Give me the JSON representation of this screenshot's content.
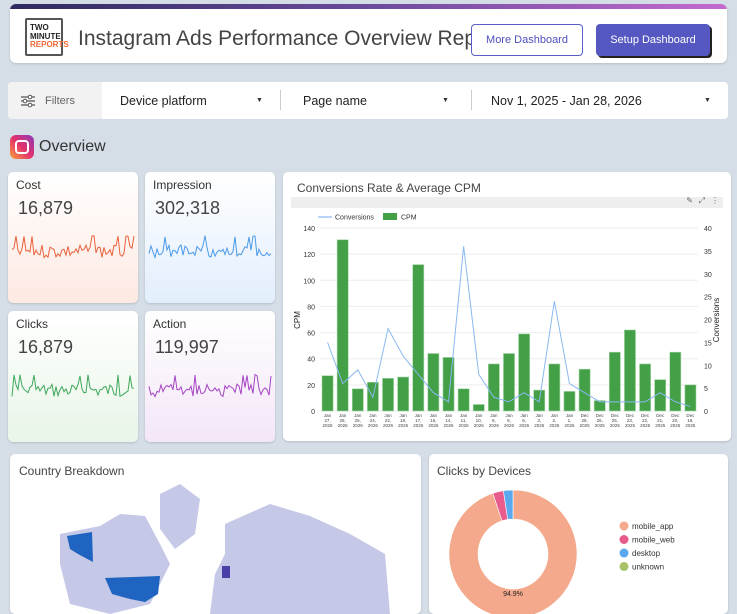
{
  "header": {
    "logo_text": [
      "TWO",
      "MINUTE",
      "REPORTS"
    ],
    "title": "Instagram Ads Performance Overview Report",
    "more_label": "More Dashboard",
    "setup_label": "Setup Dashboard"
  },
  "filters": {
    "label": "Filters",
    "device_platform": "Device platform",
    "page_name": "Page name",
    "date_range": "Nov 1, 2025 - Jan 28, 2026"
  },
  "overview": {
    "title": "Overview"
  },
  "kpis": [
    {
      "label": "Cost",
      "value": "16,879",
      "color": "#e8613a"
    },
    {
      "label": "Impression",
      "value": "302,318",
      "color": "#4a9ae8"
    },
    {
      "label": "Clicks",
      "value": "16,879",
      "color": "#3fa85a"
    },
    {
      "label": "Action",
      "value": "119,997",
      "color": "#a544c4"
    }
  ],
  "chart_data": [
    {
      "type": "bar+line",
      "title": "Conversions Rate & Average CPM",
      "legend": [
        "Conversions",
        "CPM"
      ],
      "legend_position": "top-left",
      "ylabel": "CPM",
      "y2label": "Conversions",
      "ylim": [
        0,
        140
      ],
      "y2lim": [
        0,
        40
      ],
      "yticks": [
        0,
        20,
        40,
        60,
        80,
        100,
        120,
        140
      ],
      "y2ticks": [
        0,
        5,
        10,
        15,
        20,
        25,
        30,
        35,
        40
      ],
      "categories": [
        "Jan 27, 2026",
        "Jan 26, 2026",
        "Jan 25, 2026",
        "Jan 24, 2026",
        "Jan 22, 2026",
        "Jan 18, 2026",
        "Jan 17, 2026",
        "Jan 16, 2026",
        "Jan 14, 2026",
        "Jan 11, 2026",
        "Jan 10, 2026",
        "Jan 9, 2026",
        "Jan 8, 2026",
        "Jan 6, 2026",
        "Jan 3, 2026",
        "Jan 2, 2026",
        "Jan 1, 2026",
        "Dec 28, 2025",
        "Dec 26, 2025",
        "Dec 25, 2025",
        "Dec 23, 2025",
        "Dec 22, 2025",
        "Dec 21, 2025",
        "Dec 20, 2025",
        "Dec 19, 2025"
      ],
      "series": [
        {
          "name": "CPM",
          "type": "bar",
          "axis": "left",
          "color": "#43a047",
          "values": [
            27,
            131,
            17,
            22,
            25,
            26,
            112,
            44,
            41,
            17,
            5,
            36,
            44,
            59,
            16,
            36,
            15,
            32,
            8,
            45,
            62,
            36,
            24,
            45,
            20
          ]
        },
        {
          "name": "Conversions",
          "type": "line",
          "axis": "right",
          "color": "#8ab8f0",
          "values": [
            15,
            6,
            9,
            3,
            18,
            12,
            8,
            4,
            2,
            36,
            8,
            3,
            2,
            4,
            2,
            24,
            6,
            4,
            2,
            2,
            2,
            2,
            4,
            2,
            1
          ]
        }
      ]
    },
    {
      "type": "pie",
      "title": "Clicks by Devices",
      "legend_position": "right",
      "slices": [
        {
          "label": "mobile_app",
          "value": 94.9,
          "color": "#f4a98c",
          "data_label": "94.9%"
        },
        {
          "label": "mobile_web",
          "value": 2.7,
          "color": "#e95b8c"
        },
        {
          "label": "desktop",
          "value": 2.4,
          "color": "#5aa9ee"
        },
        {
          "label": "unknown",
          "value": 0,
          "color": "#a9c26a"
        }
      ]
    }
  ],
  "map": {
    "title": "Country Breakdown",
    "base_color": "#c5c8e6",
    "highlight_color": "#1e64c0",
    "secondary_color": "#4a3fa8"
  }
}
